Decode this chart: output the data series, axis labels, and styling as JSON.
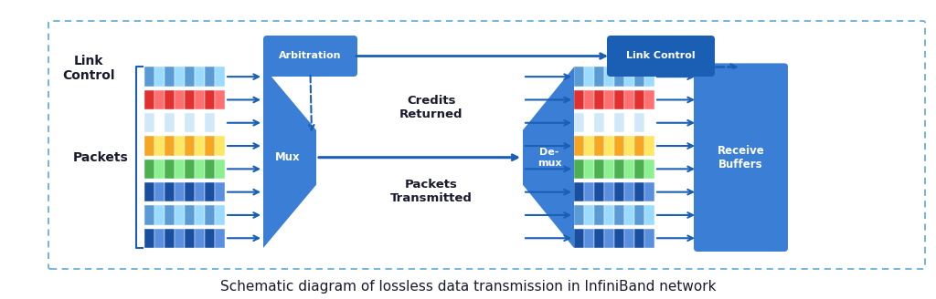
{
  "bg_color": "#ffffff",
  "border_color": "#6baed6",
  "box_blue_dark": "#1a5fb4",
  "box_blue_med": "#3a7fd5",
  "box_blue_light": "#4a90d9",
  "arrow_color": "#1a5fb4",
  "title": "Schematic diagram of lossless data transmission in InfiniBand network",
  "title_fontsize": 11,
  "packet_colors": [
    "#1a4fa0",
    "#5b9bd5",
    "#1a4fa0",
    "#4caf50",
    "#f5a623",
    "#d0e8f8",
    "#e03030",
    "#5b9bd5"
  ],
  "label_link_control": "Link\nControl",
  "label_packets": "Packets",
  "label_mux": "Mux",
  "label_demux": "De-\nmux",
  "label_arbitration": "Arbitration",
  "label_link_control2": "Link Control",
  "label_receive_buffers": "Receive\nBuffers",
  "label_credits": "Credits\nReturned",
  "label_packets_transmitted": "Packets\nTransmitted"
}
